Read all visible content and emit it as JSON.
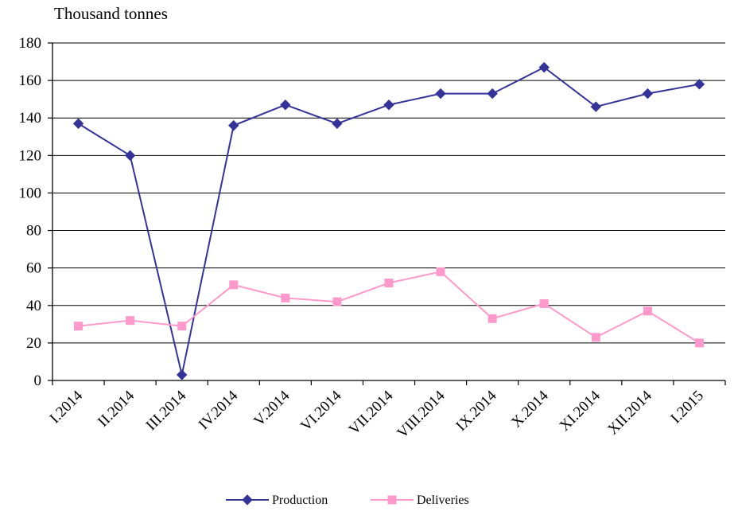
{
  "chart_data": {
    "type": "line",
    "ylabel": "Thousand tonnes",
    "ylim": [
      0,
      180
    ],
    "yticks": [
      0,
      20,
      40,
      60,
      80,
      100,
      120,
      140,
      160,
      180
    ],
    "grid": true,
    "legend_position": "bottom",
    "categories": [
      "I.2014",
      "II.2014",
      "III.2014",
      "IV.2014",
      "V.2014",
      "VI.2014",
      "VII.2014",
      "VIII.2014",
      "IX.2014",
      "X.2014",
      "XI.2014",
      "XII.2014",
      "I.2015"
    ],
    "series": [
      {
        "name": "Production",
        "color": "#333399",
        "marker": "diamond",
        "values": [
          137,
          120,
          3,
          136,
          147,
          137,
          147,
          153,
          153,
          167,
          146,
          153,
          158
        ]
      },
      {
        "name": "Deliveries",
        "color": "#ff99cc",
        "marker": "square",
        "values": [
          29,
          32,
          29,
          51,
          44,
          42,
          52,
          58,
          33,
          41,
          23,
          37,
          20
        ]
      }
    ]
  }
}
